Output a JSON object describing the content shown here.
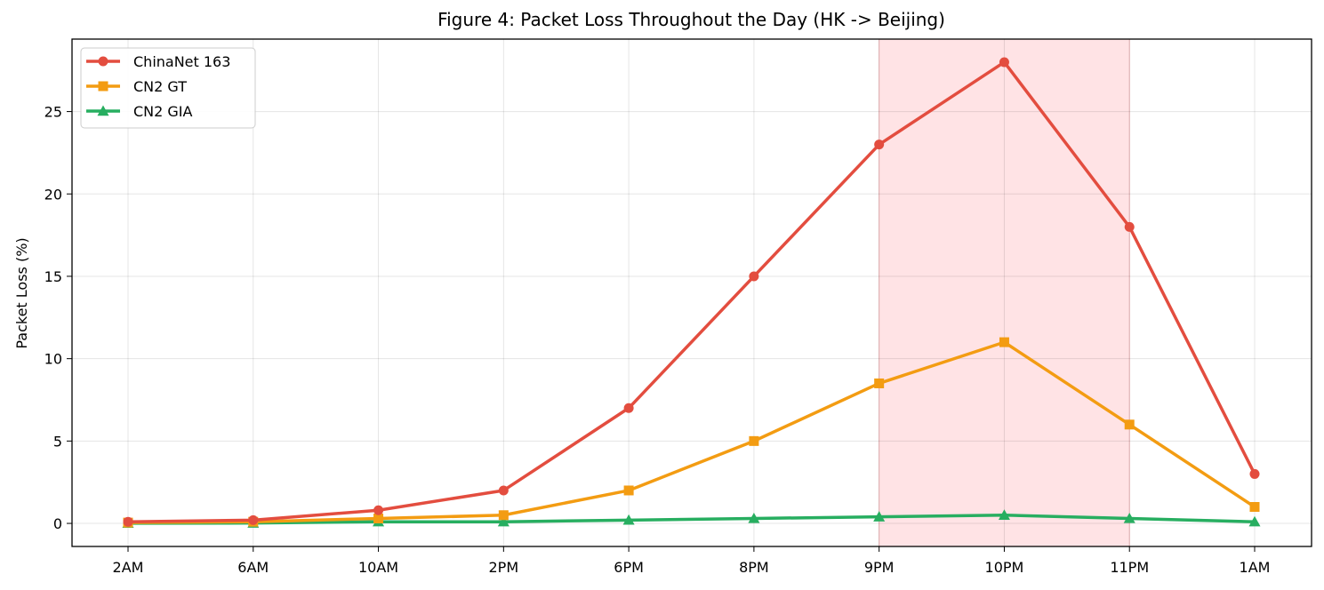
{
  "chart_data": {
    "type": "line",
    "title": "Figure 4: Packet Loss Throughout the Day (HK -> Beijing)",
    "xlabel": "",
    "ylabel": "Packet Loss (%)",
    "categories": [
      "2AM",
      "6AM",
      "10AM",
      "2PM",
      "6PM",
      "8PM",
      "9PM",
      "10PM",
      "11PM",
      "1AM"
    ],
    "ylim": [
      -1.4,
      29.4
    ],
    "yticks": [
      0,
      5,
      10,
      15,
      20,
      25
    ],
    "grid": true,
    "legend_position": "top-left",
    "highlight": {
      "from": "9PM",
      "to": "11PM",
      "color": "#ffe3e5"
    },
    "series": [
      {
        "name": "ChinaNet 163",
        "color": "#e34d3f",
        "marker": "circle",
        "values": [
          0.1,
          0.2,
          0.8,
          2,
          7,
          15,
          23,
          28,
          18,
          3
        ]
      },
      {
        "name": "CN2 GT",
        "color": "#f39c12",
        "marker": "square",
        "values": [
          0.05,
          0.1,
          0.3,
          0.5,
          2,
          5,
          8.5,
          11,
          6,
          1
        ]
      },
      {
        "name": "CN2 GIA",
        "color": "#27ae60",
        "marker": "triangle",
        "values": [
          0.01,
          0.02,
          0.1,
          0.1,
          0.2,
          0.3,
          0.4,
          0.5,
          0.3,
          0.1
        ]
      }
    ]
  }
}
